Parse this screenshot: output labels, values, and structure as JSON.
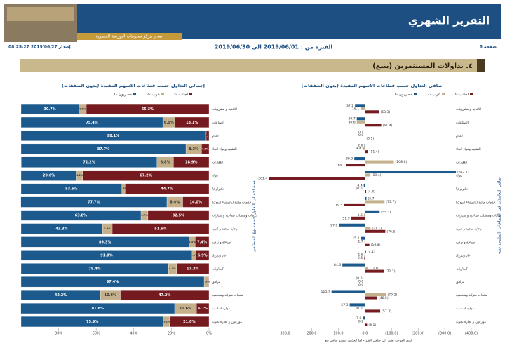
{
  "header": {
    "title": "التقرير الشهري",
    "publisher": "إصدار مركز معلومات البورصة المصرية",
    "page": "صفحة 6",
    "period": "الفترة من : 2019/06/01 الى 2019/06/30",
    "issued": "إصدار 2019/06/27 08:25:27",
    "section": "٤. تداولات المستثمرين (يتبع)"
  },
  "chart_data": [
    {
      "type": "stacked_bar",
      "title": "إجمالي التداول حسب قطاعات الاسهم المقيدة (بدون الصفقات)",
      "y_label": "نسبة اجمالي التداول حسب نوع المستثمر",
      "categories": [
        "الاغذية و مشروبات",
        "الصناعات",
        "اعلام",
        "التشييد ومواد البناء",
        "العقارات",
        "بنوك",
        "تكنولوجيا",
        "خدمات مالية (باستثناء البنوك)",
        "خدمات ومنتجات صناعية و سيارات",
        "رعاية صحية و ادوية",
        "سياحة و ترفيه",
        "غاز وبترول",
        "كيماويات",
        "مرافق",
        "منتجات منزلية وشخصية",
        "موارد اساسية",
        "موزعون و تجارة تجزئة"
      ],
      "series": [
        {
          "name": "1- مصريون",
          "color": "#1c5a8e",
          "values": [
            30.7,
            75.4,
            98.1,
            87.7,
            72.2,
            29.6,
            53.6,
            77.7,
            63.8,
            43.3,
            89.3,
            91.0,
            78.4,
            97.4,
            42.2,
            81.8,
            75.9
          ],
          "value_labels": [
            "30.7%",
            "75.4%",
            "98.1%",
            "87.7%",
            "72.2%",
            "29.6%",
            "53.6%",
            "77.7%",
            "63.8%",
            "43.3%",
            "89.3%",
            "91.0%",
            "78.4%",
            "97.4%",
            "42.2%",
            "81.8%",
            "75.9%"
          ]
        },
        {
          "name": "2- عرب",
          "color": "#c4b08a",
          "values": [
            4.0,
            6.5,
            0.4,
            8.3,
            8.8,
            3.2,
            1.7,
            8.4,
            3.7,
            5.2,
            3.3,
            2.1,
            4.3,
            2.4,
            10.6,
            11.6,
            3.1
          ],
          "value_labels": [
            "4.0%",
            "6.5%",
            "0.4%",
            "8.3%",
            "8.8%",
            "3.2%",
            "1.7%",
            "8.4%",
            "3.7%",
            "5.2%",
            "3.3%",
            "2.1%",
            "4.3%",
            "2.4%",
            "10.6%",
            "11.6%",
            "3.1%"
          ]
        },
        {
          "name": "3- اجانب",
          "color": "#751a1f",
          "values": [
            65.3,
            18.1,
            1.5,
            4.0,
            18.9,
            67.2,
            44.7,
            14.0,
            32.5,
            51.5,
            7.4,
            6.9,
            17.3,
            0.2,
            47.2,
            6.7,
            21.0
          ],
          "value_labels": [
            "65.3%",
            "18.1%",
            "1.5%",
            "4.0%",
            "18.9%",
            "67.2%",
            "44.7%",
            "14.0%",
            "32.5%",
            "51.5%",
            "7.4%",
            "6.9%",
            "17.3%",
            "0.2%",
            "47.2%",
            "6.7%",
            "21.0%"
          ]
        }
      ],
      "xlim": [
        100,
        0
      ],
      "xticks": [
        {
          "value": 80,
          "label": "80%"
        },
        {
          "value": 60,
          "label": "60%"
        },
        {
          "value": 40,
          "label": "40%"
        },
        {
          "value": 20,
          "label": "20%"
        },
        {
          "value": 0,
          "label": "0%"
        }
      ]
    },
    {
      "type": "bar",
      "title": "صافي التداول حسب قطاعات الاسهم المقيدة (بدون الصفقات)",
      "y_label": "صافي التعاملات في القطاعات بالمليون جنيه",
      "note": "القيم الموجبة تشير الي صافي الشراء اما العكس فيشير صافي بيع",
      "categories": [
        "الاغذية و مشروبات",
        "الصناعات",
        "اعلام",
        "التشييد ومواد البناء",
        "العقارات",
        "بنوك",
        "تكنولوجيا",
        "خدمات مالية (باستثناء البنوك)",
        "خدمات ومنتجات صناعية و سيارات",
        "رعاية صحية و ادوية",
        "سياحة و ترفيه",
        "غاز وبترول",
        "كيماويات",
        "مرافق",
        "منتجات منزلية وشخصية",
        "موارد اساسية",
        "موزعون و تجارة تجزئة"
      ],
      "series": [
        {
          "name": "1- مصريون",
          "color": "#1c5a8e",
          "values": [
            37.2,
            30.7,
            0.1,
            2.0,
            39.9,
            -342.1,
            4.4,
            -5.7,
            -55.3,
            97.6,
            15.1,
            -4.1,
            84.8,
            0.0,
            125.7,
            57.3,
            7.8
          ],
          "value_labels": [
            "37.2",
            "30.7",
            "0.1",
            "2.0",
            "39.9",
            "(342.1)",
            "4.4",
            "(5.7)",
            "(55.3)",
            "97.6",
            "15.1",
            "(4.1)",
            "84.8",
            "(0.0)",
            "125.7",
            "57.3",
            "7.8"
          ]
        },
        {
          "name": "2- عرب",
          "color": "#c4b08a",
          "values": [
            16.1,
            30.6,
            0.0,
            9.4,
            -108.6,
            -19.4,
            0.0,
            -73.7,
            3.6,
            -21.1,
            1.7,
            1.6,
            -12.6,
            0.0,
            -79.2,
            0.0,
            0.2
          ],
          "value_labels": [
            "16.1",
            "30.6",
            "0.0",
            "9.4",
            "(108.6)",
            "(19.4)",
            "(0.0)",
            "(73.7)",
            "3.6",
            "(21.1)",
            "1.7",
            "1.6",
            "(12.6)",
            "0.0",
            "(79.2)",
            "(0.0)",
            "0.2"
          ]
        },
        {
          "name": "3- اجانب",
          "color": "#751a1f",
          "values": [
            -53.3,
            -61.4,
            -0.1,
            -11.4,
            69.7,
            361.4,
            -4.4,
            79.5,
            51.9,
            -76.5,
            -16.8,
            2.5,
            -72.2,
            0.0,
            -46.5,
            -57.3,
            -8.1
          ],
          "value_labels": [
            "(53.3)",
            "(61.4)",
            "(0.1)",
            "(11.4)",
            "69.7",
            "361.4",
            "(4.4)",
            "79.5",
            "51.9",
            "(76.5)",
            "(16.8)",
            "2.5",
            "(72.2)",
            "0.0",
            "(46.5)",
            "(57.3)",
            "(8.1)"
          ]
        }
      ],
      "xlim": [
        370,
        -400
      ],
      "xticks": [
        {
          "value": 300,
          "label": "300.0"
        },
        {
          "value": 200,
          "label": "200.0"
        },
        {
          "value": 100,
          "label": "100.0"
        },
        {
          "value": 0,
          "label": "0.0"
        },
        {
          "value": -100,
          "label": "(100.0)"
        },
        {
          "value": -200,
          "label": "(200.0)"
        },
        {
          "value": -300,
          "label": "(300.0)"
        },
        {
          "value": -400,
          "label": "(400.0)"
        }
      ]
    }
  ]
}
